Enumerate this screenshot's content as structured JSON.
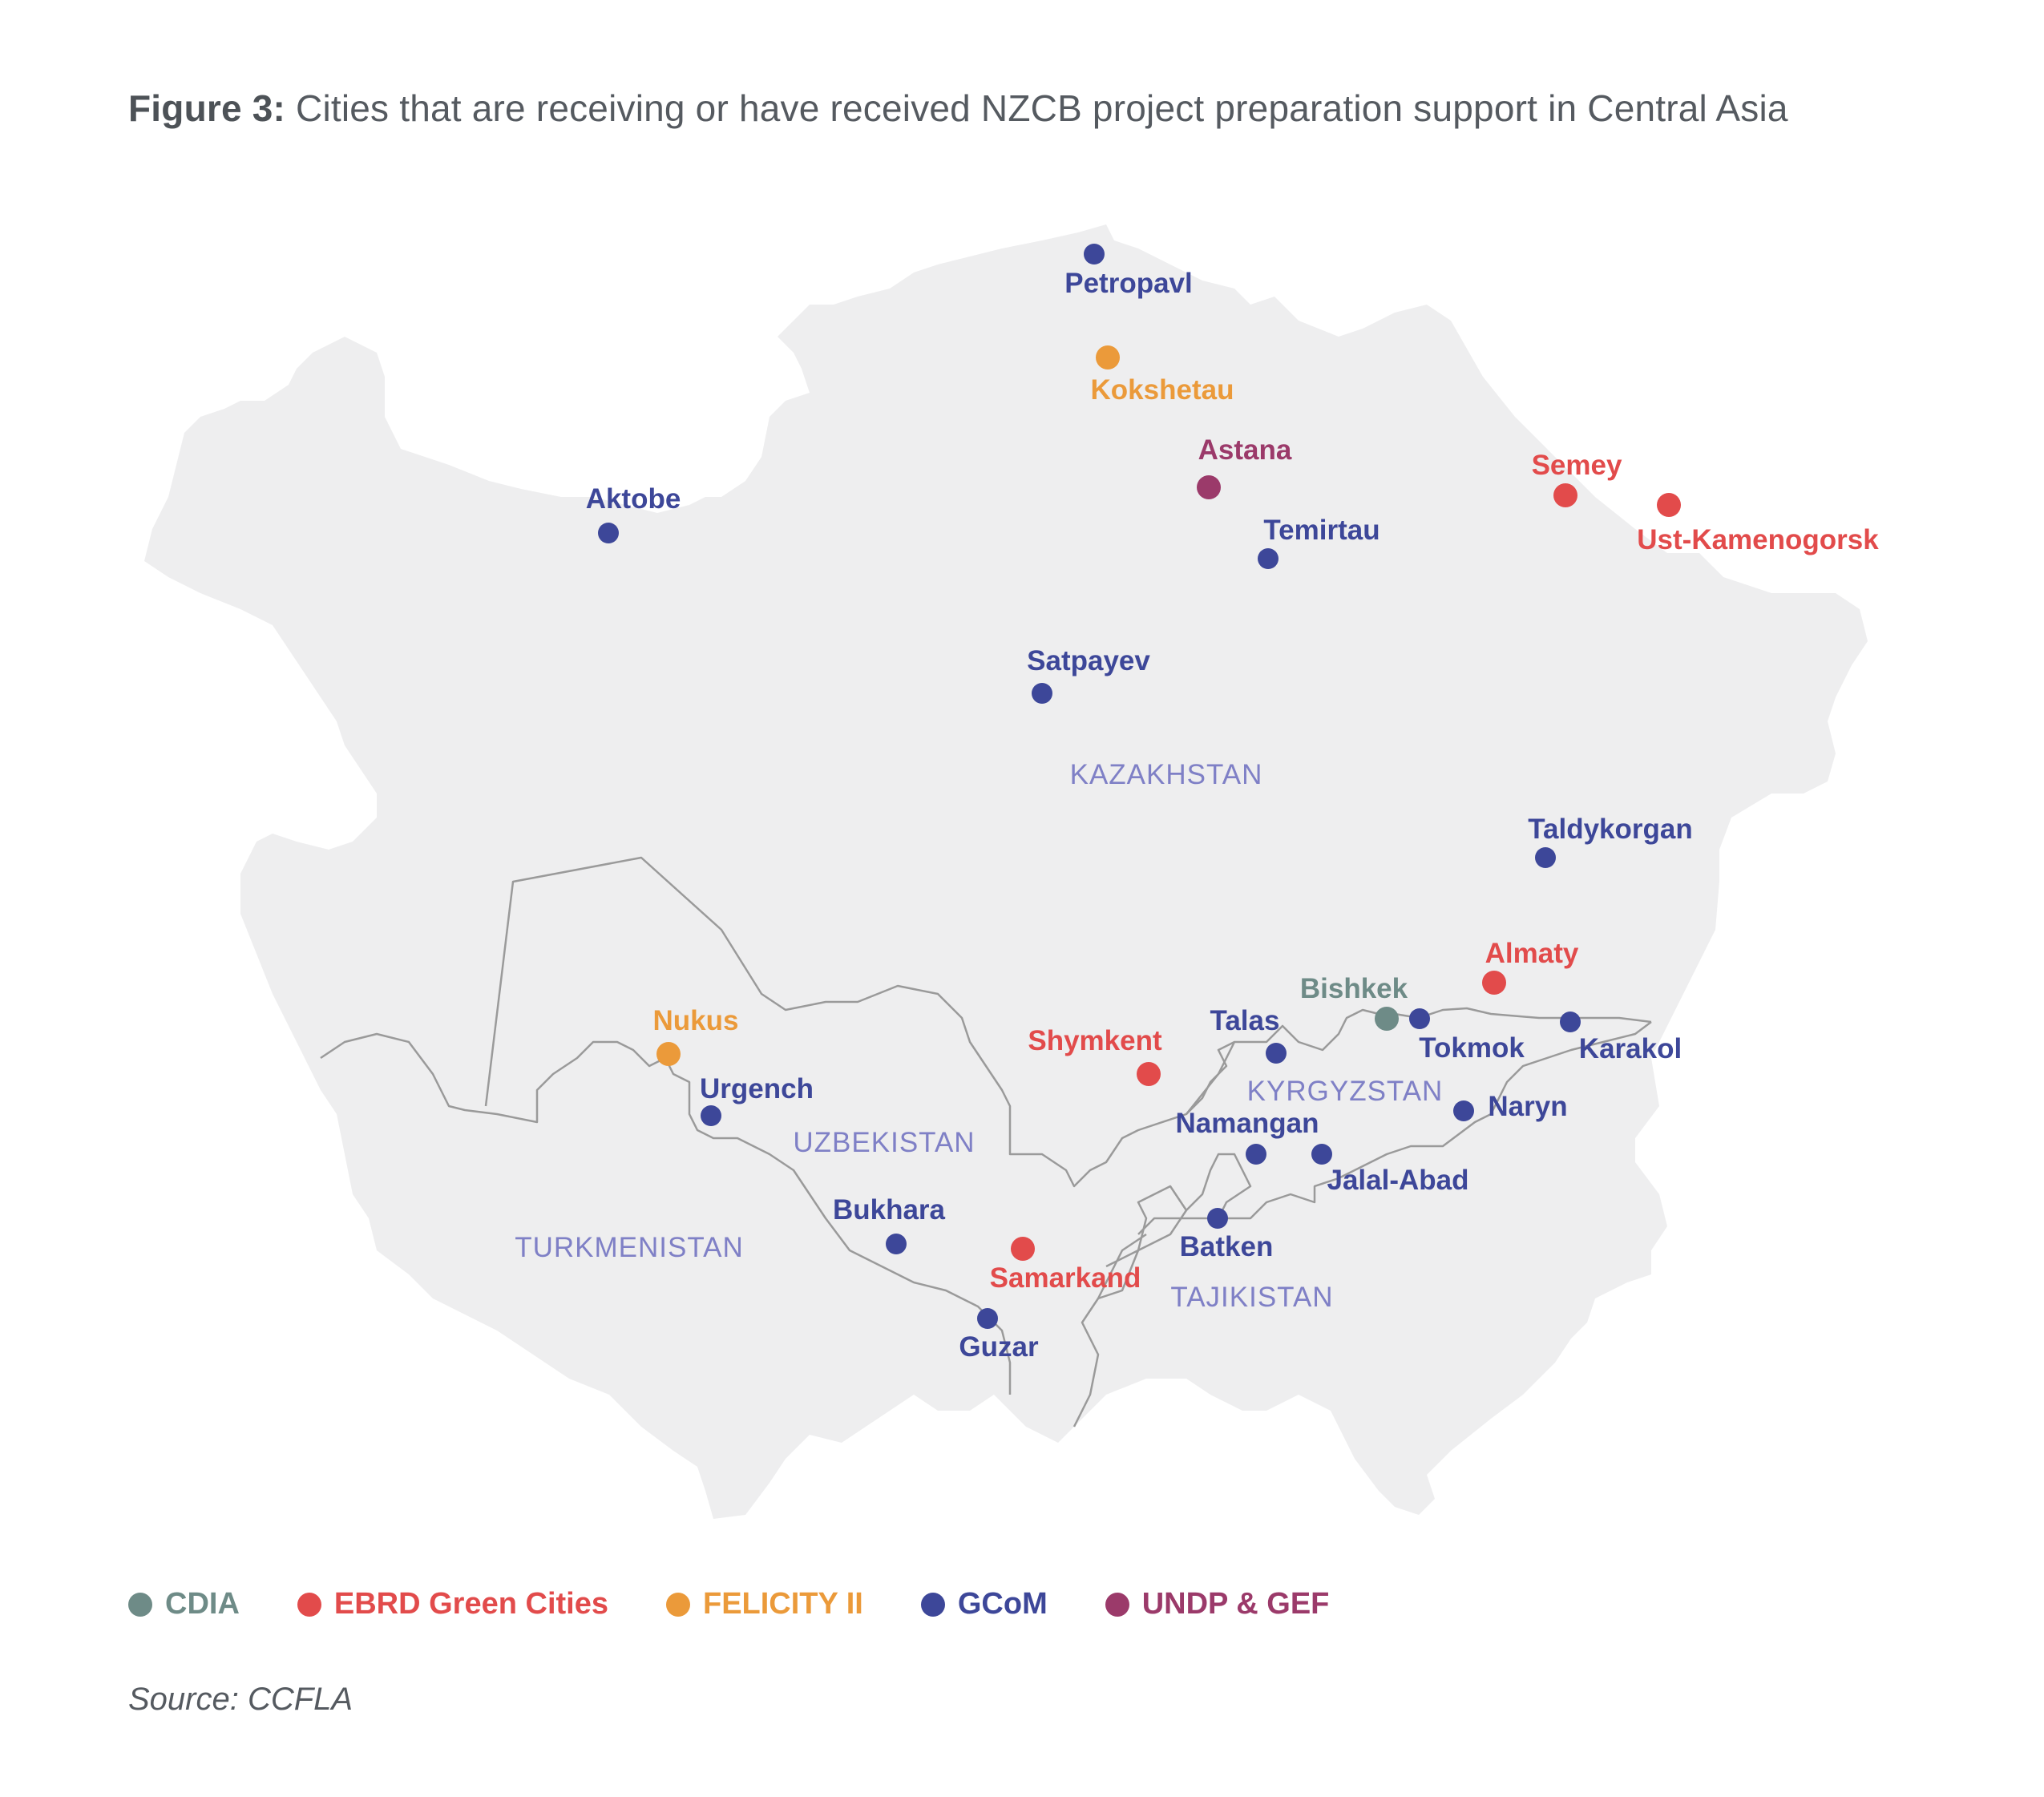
{
  "figure": {
    "label": "Figure 3:",
    "caption": "Cities that are receiving or have received NZCB project preparation support in Central Asia"
  },
  "programs": [
    {
      "id": "cdia",
      "name": "CDIA",
      "color": "#6e8b87"
    },
    {
      "id": "ebrd",
      "name": "EBRD Green Cities",
      "color": "#e24b4b"
    },
    {
      "id": "felicity",
      "name": "FELICITY II",
      "color": "#eb9a3a"
    },
    {
      "id": "gcom",
      "name": "GCoM",
      "color": "#3d4799"
    },
    {
      "id": "undp",
      "name": "UNDP & GEF",
      "color": "#9b3a6a"
    }
  ],
  "countries": [
    "KAZAKHSTAN",
    "UZBEKISTAN",
    "TURKMENISTAN",
    "KYRGYZSTAN",
    "TAJIKISTAN"
  ],
  "cities": [
    {
      "name": "Petropavl",
      "program": "gcom"
    },
    {
      "name": "Kokshetau",
      "program": "felicity"
    },
    {
      "name": "Astana",
      "program": "undp"
    },
    {
      "name": "Semey",
      "program": "ebrd"
    },
    {
      "name": "Ust-Kamenogorsk",
      "program": "ebrd"
    },
    {
      "name": "Aktobe",
      "program": "gcom"
    },
    {
      "name": "Temirtau",
      "program": "gcom"
    },
    {
      "name": "Satpayev",
      "program": "gcom"
    },
    {
      "name": "Taldykorgan",
      "program": "gcom"
    },
    {
      "name": "Almaty",
      "program": "ebrd"
    },
    {
      "name": "Bishkek",
      "program": "cdia"
    },
    {
      "name": "Tokmok",
      "program": "gcom"
    },
    {
      "name": "Karakol",
      "program": "gcom"
    },
    {
      "name": "Talas",
      "program": "gcom"
    },
    {
      "name": "Shymkent",
      "program": "ebrd"
    },
    {
      "name": "Nukus",
      "program": "felicity"
    },
    {
      "name": "Urgench",
      "program": "gcom"
    },
    {
      "name": "Naryn",
      "program": "gcom"
    },
    {
      "name": "Namangan",
      "program": "gcom"
    },
    {
      "name": "Jalal-Abad",
      "program": "gcom"
    },
    {
      "name": "Batken",
      "program": "gcom"
    },
    {
      "name": "Bukhara",
      "program": "gcom"
    },
    {
      "name": "Samarkand",
      "program": "ebrd"
    },
    {
      "name": "Guzar",
      "program": "gcom"
    }
  ],
  "source": "Source: CCFLA"
}
